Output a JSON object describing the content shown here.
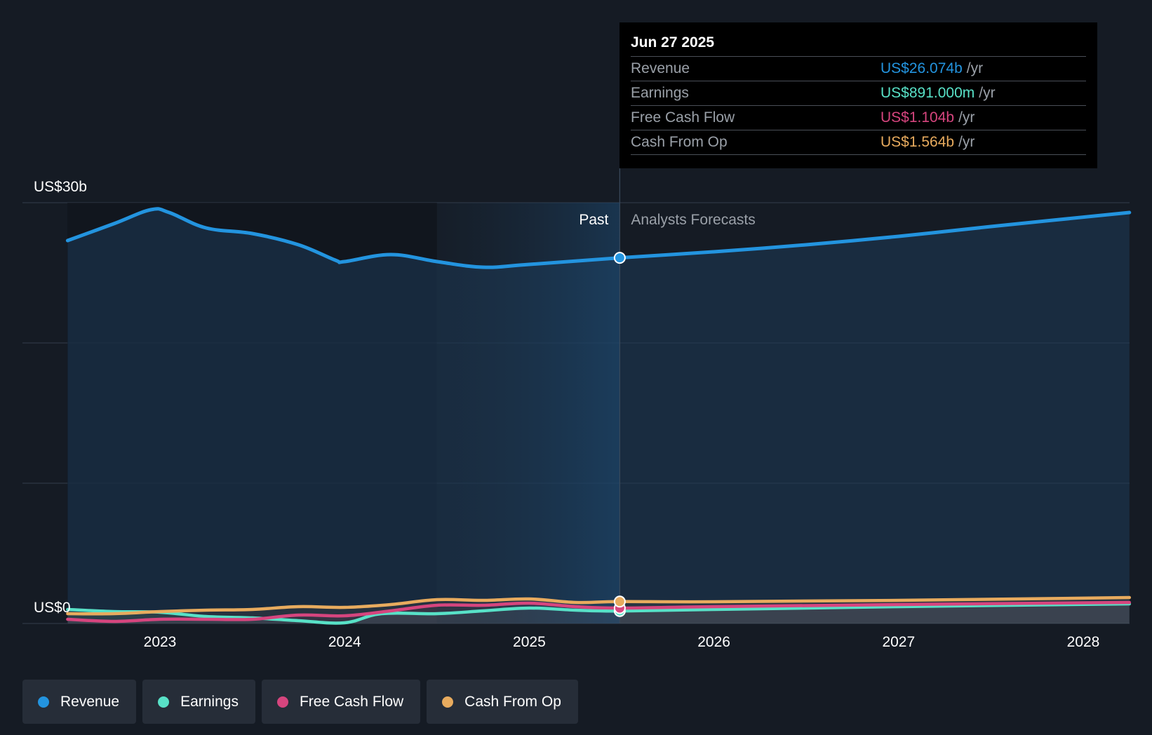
{
  "chart_data": {
    "type": "line",
    "y_unit_label_top": "US$30b",
    "y_unit_label_bottom": "US$0",
    "ylim": [
      0,
      30
    ],
    "xlim": [
      2022.55,
      2028.25
    ],
    "grid": true,
    "x_ticks": [
      "2023",
      "2024",
      "2025",
      "2026",
      "2027",
      "2028"
    ],
    "x_tick_values": [
      2023,
      2024,
      2025,
      2026,
      2027,
      2028
    ],
    "past_label": "Past",
    "forecast_label": "Analysts Forecasts",
    "past_end": 2025.49,
    "highlight_start": 2024.5,
    "series": [
      {
        "name": "Revenue",
        "color": "#2394df",
        "points": [
          [
            2022.5,
            27.3
          ],
          [
            2022.75,
            28.5
          ],
          [
            2022.95,
            29.5
          ],
          [
            2023.05,
            29.3
          ],
          [
            2023.25,
            28.2
          ],
          [
            2023.5,
            27.8
          ],
          [
            2023.75,
            27.0
          ],
          [
            2023.95,
            25.9
          ],
          [
            2024.0,
            25.8
          ],
          [
            2024.25,
            26.3
          ],
          [
            2024.5,
            25.8
          ],
          [
            2024.75,
            25.4
          ],
          [
            2025.0,
            25.6
          ],
          [
            2025.49,
            26.07
          ],
          [
            2026.0,
            26.5
          ],
          [
            2026.5,
            27.0
          ],
          [
            2027.0,
            27.6
          ],
          [
            2027.5,
            28.3
          ],
          [
            2028.25,
            29.3
          ]
        ]
      },
      {
        "name": "Earnings",
        "color": "#58e1c7",
        "points": [
          [
            2022.5,
            1.0
          ],
          [
            2022.75,
            0.85
          ],
          [
            2023.0,
            0.8
          ],
          [
            2023.25,
            0.5
          ],
          [
            2023.5,
            0.4
          ],
          [
            2023.75,
            0.2
          ],
          [
            2024.0,
            0.05
          ],
          [
            2024.2,
            0.7
          ],
          [
            2024.5,
            0.7
          ],
          [
            2024.75,
            0.9
          ],
          [
            2025.0,
            1.1
          ],
          [
            2025.25,
            0.95
          ],
          [
            2025.49,
            0.89
          ],
          [
            2026.0,
            1.0
          ],
          [
            2027.0,
            1.2
          ],
          [
            2028.25,
            1.4
          ]
        ]
      },
      {
        "name": "Free Cash Flow",
        "color": "#d6457e",
        "points": [
          [
            2022.5,
            0.3
          ],
          [
            2022.75,
            0.15
          ],
          [
            2023.0,
            0.3
          ],
          [
            2023.25,
            0.3
          ],
          [
            2023.5,
            0.3
          ],
          [
            2023.75,
            0.6
          ],
          [
            2024.0,
            0.55
          ],
          [
            2024.25,
            0.9
          ],
          [
            2024.5,
            1.3
          ],
          [
            2024.75,
            1.3
          ],
          [
            2025.0,
            1.45
          ],
          [
            2025.25,
            1.2
          ],
          [
            2025.49,
            1.1
          ],
          [
            2026.0,
            1.2
          ],
          [
            2027.0,
            1.35
          ],
          [
            2028.25,
            1.5
          ]
        ]
      },
      {
        "name": "Cash From Op",
        "color": "#e8ab5e",
        "points": [
          [
            2022.5,
            0.7
          ],
          [
            2022.75,
            0.7
          ],
          [
            2023.0,
            0.85
          ],
          [
            2023.25,
            0.95
          ],
          [
            2023.5,
            1.0
          ],
          [
            2023.75,
            1.2
          ],
          [
            2024.0,
            1.15
          ],
          [
            2024.25,
            1.35
          ],
          [
            2024.5,
            1.7
          ],
          [
            2024.75,
            1.65
          ],
          [
            2025.0,
            1.75
          ],
          [
            2025.25,
            1.5
          ],
          [
            2025.49,
            1.56
          ],
          [
            2026.0,
            1.55
          ],
          [
            2027.0,
            1.65
          ],
          [
            2028.25,
            1.85
          ]
        ]
      }
    ]
  },
  "tooltip": {
    "date": "Jun 27 2025",
    "rows": [
      {
        "name": "Revenue",
        "value": "US$26.074b",
        "unit": "/yr",
        "color": "#2394df"
      },
      {
        "name": "Earnings",
        "value": "US$891.000m",
        "unit": "/yr",
        "color": "#58e1c7"
      },
      {
        "name": "Free Cash Flow",
        "value": "US$1.104b",
        "unit": "/yr",
        "color": "#d6457e"
      },
      {
        "name": "Cash From Op",
        "value": "US$1.564b",
        "unit": "/yr",
        "color": "#e8ab5e"
      }
    ]
  },
  "legend": [
    {
      "label": "Revenue",
      "color": "#2394df"
    },
    {
      "label": "Earnings",
      "color": "#58e1c7"
    },
    {
      "label": "Free Cash Flow",
      "color": "#d6457e"
    },
    {
      "label": "Cash From Op",
      "color": "#e8ab5e"
    }
  ]
}
